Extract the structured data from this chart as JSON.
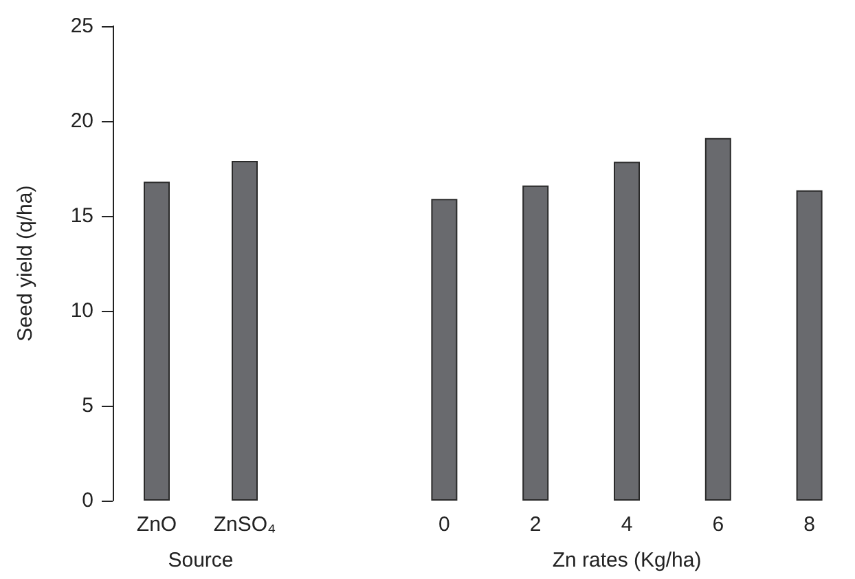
{
  "chart_data": [
    {
      "type": "bar",
      "categories": [
        "ZnO",
        "ZnSO₄"
      ],
      "values": [
        16.8,
        17.9
      ],
      "color": "#696a6e",
      "xlabel": "Source",
      "ylabel": "Seed yield (q/ha)",
      "ylim": [
        0,
        25
      ],
      "yticks": [
        0,
        5,
        10,
        15,
        20,
        25
      ]
    },
    {
      "type": "bar",
      "categories": [
        "0",
        "2",
        "4",
        "6",
        "8"
      ],
      "values": [
        15.9,
        16.6,
        17.85,
        19.1,
        16.35
      ],
      "color": "#696a6e",
      "xlabel": "Zn rates (Kg/ha)",
      "ylim": [
        0,
        25
      ],
      "yticks": [
        0,
        5,
        10,
        15,
        20,
        25
      ],
      "tick_labels": "x"
    }
  ]
}
